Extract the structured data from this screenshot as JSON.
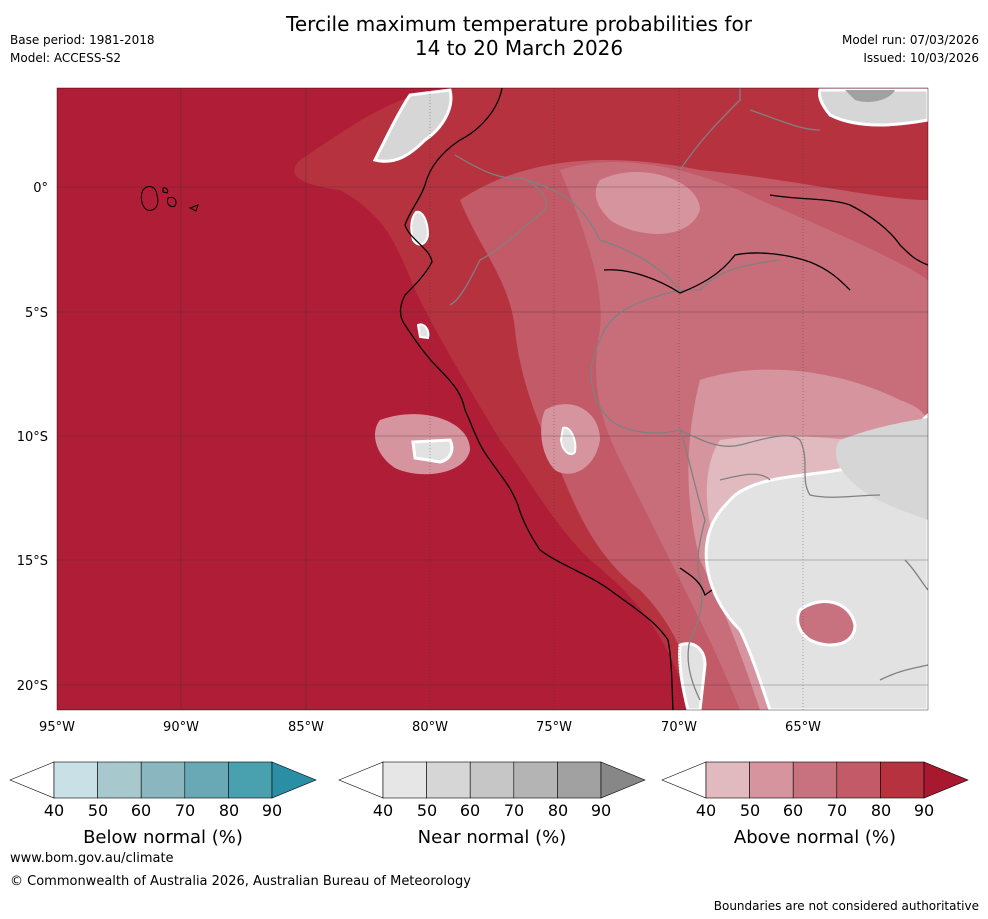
{
  "header": {
    "title_line1": "Tercile maximum temperature probabilities for",
    "title_line2": "14 to 20 March 2026",
    "base_period": "Base period: 1981-2018",
    "model": "Model: ACCESS-S2",
    "model_run": "Model run: 07/03/2026",
    "issued": "Issued: 10/03/2026"
  },
  "map": {
    "lat_labels": [
      "0°",
      "5°S",
      "10°S",
      "15°S",
      "20°S"
    ],
    "lon_labels": [
      "95°W",
      "90°W",
      "85°W",
      "80°W",
      "75°W",
      "70°W",
      "65°W"
    ]
  },
  "legend": {
    "ticks": [
      "40",
      "50",
      "60",
      "70",
      "80",
      "90"
    ],
    "below": {
      "title": "Below normal (%)",
      "colors": [
        "#ffffff",
        "#c9e1e6",
        "#a7c9ce",
        "#89b6bf",
        "#69a9b5",
        "#49a1b0",
        "#2a8ea4"
      ]
    },
    "near": {
      "title": "Near normal (%)",
      "colors": [
        "#ffffff",
        "#e6e6e6",
        "#d6d6d6",
        "#c6c6c6",
        "#b4b4b4",
        "#a1a1a1",
        "#878787"
      ]
    },
    "above": {
      "title": "Above normal (%)",
      "colors": [
        "#ffffff",
        "#e1bac0",
        "#d6959e",
        "#c9727f",
        "#c25a67",
        "#b6323f",
        "#a8182f"
      ]
    }
  },
  "footer": {
    "url": "www.bom.gov.au/climate",
    "copyright": "© Commonwealth of Australia 2026, Australian Bureau of Meteorology",
    "note": "Boundaries are not considered authoritative"
  }
}
